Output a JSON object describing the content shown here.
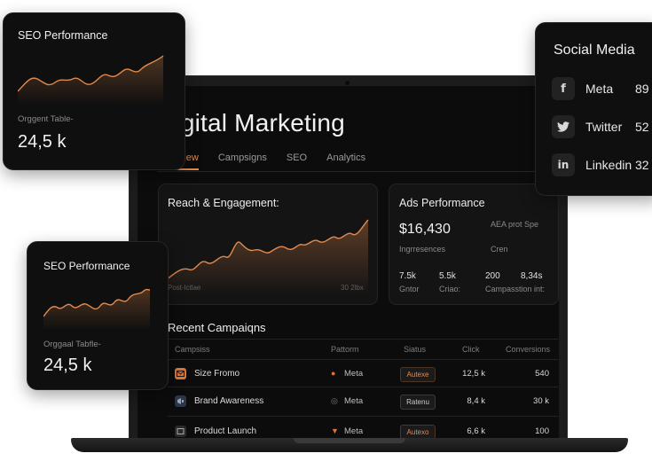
{
  "dashboard": {
    "title": "Digital Marketing",
    "tabs": [
      "Overview",
      "Campsigns",
      "SEO",
      "Analytics"
    ],
    "reach": {
      "title": "Reach & Engagement:",
      "x_start": "Post-lctlae",
      "x_end": "30 2lbx"
    },
    "ads": {
      "title": "Ads Performance",
      "value": "$16,430",
      "value_label": "Ingrresences",
      "right_label": "AEA prot Spe",
      "right_sub": "Cren",
      "stats": [
        {
          "value": "7.5k",
          "label": "Gntor"
        },
        {
          "value": "5.5k",
          "label": "Criao:"
        },
        {
          "value": "200",
          "label": "Campasstion int:"
        },
        {
          "value": "8,34s",
          "label": ""
        }
      ]
    },
    "campaigns": {
      "title": "Recent Campaiqns",
      "headers": [
        "Campsiss",
        "Pattorm",
        "Siatus",
        "Click",
        "Conversions"
      ],
      "rows": [
        {
          "name": "Size Fromo",
          "platform": "Meta",
          "status": "Autexe",
          "clicks": "12,5 k",
          "conversions": "540"
        },
        {
          "name": "Brand Awareness",
          "platform": "Meta",
          "status": "Ratenu",
          "clicks": "8,4 k",
          "conversions": "30 k"
        },
        {
          "name": "Product Launch",
          "platform": "Meta",
          "status": "Autexo",
          "clicks": "6,6 k",
          "conversions": "100"
        }
      ]
    }
  },
  "seo_card_top": {
    "title": "SEO Performance",
    "sub": "Orggent Table-",
    "value": "24,5 k"
  },
  "seo_card_bottom": {
    "title": "SEO Performance",
    "sub": "Orggaal Tabfle-",
    "value": "24,5 k"
  },
  "social": {
    "title": "Social Media",
    "items": [
      {
        "name": "Meta",
        "icon": "f",
        "value": "89"
      },
      {
        "name": "Twitter",
        "icon": "twitter-bird",
        "value": "52"
      },
      {
        "name": "Linkedin",
        "icon": "in",
        "value": "32"
      }
    ]
  },
  "colors": {
    "accent": "#e38a4e",
    "background": "#0c0c0c",
    "card": "#141414"
  }
}
